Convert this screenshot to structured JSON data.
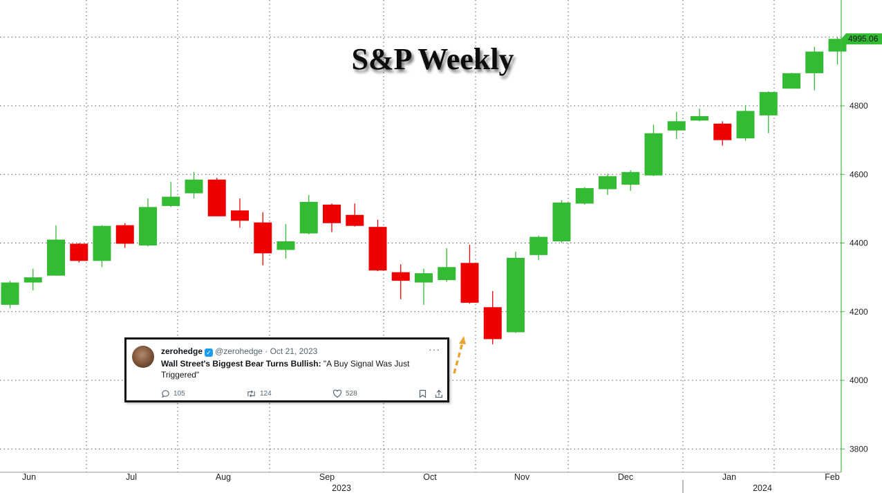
{
  "chart_data": {
    "type": "candlestick",
    "title": "S&P Weekly",
    "y_ticks": [
      3800,
      4000,
      4200,
      4400,
      4600,
      4800
    ],
    "ylim": [
      3740,
      5060
    ],
    "last_value": "4995.06",
    "grid": true,
    "y_axis_position": "right",
    "colors": {
      "up": "#33bb33",
      "down": "#ee0000",
      "axis": "#44bb44"
    },
    "month_labels": [
      "Jun",
      "Jul",
      "Aug",
      "Sep",
      "Oct",
      "Nov",
      "Dec",
      "Jan",
      "Feb"
    ],
    "year_labels": [
      "2023",
      "2024"
    ],
    "candles": [
      {
        "o": 4220,
        "h": 4290,
        "l": 4210,
        "c": 4285
      },
      {
        "o": 4285,
        "h": 4325,
        "l": 4262,
        "c": 4300
      },
      {
        "o": 4305,
        "h": 4452,
        "l": 4305,
        "c": 4410
      },
      {
        "o": 4398,
        "h": 4400,
        "l": 4343,
        "c": 4348
      },
      {
        "o": 4348,
        "h": 4452,
        "l": 4330,
        "c": 4450
      },
      {
        "o": 4452,
        "h": 4458,
        "l": 4386,
        "c": 4398
      },
      {
        "o": 4393,
        "h": 4530,
        "l": 4390,
        "c": 4505
      },
      {
        "o": 4508,
        "h": 4578,
        "l": 4505,
        "c": 4535
      },
      {
        "o": 4545,
        "h": 4607,
        "l": 4530,
        "c": 4585
      },
      {
        "o": 4585,
        "h": 4590,
        "l": 4478,
        "c": 4478
      },
      {
        "o": 4495,
        "h": 4530,
        "l": 4445,
        "c": 4465
      },
      {
        "o": 4460,
        "h": 4490,
        "l": 4335,
        "c": 4370
      },
      {
        "o": 4380,
        "h": 4455,
        "l": 4355,
        "c": 4405
      },
      {
        "o": 4428,
        "h": 4540,
        "l": 4425,
        "c": 4520
      },
      {
        "o": 4512,
        "h": 4515,
        "l": 4432,
        "c": 4458
      },
      {
        "o": 4482,
        "h": 4515,
        "l": 4448,
        "c": 4450
      },
      {
        "o": 4447,
        "h": 4468,
        "l": 4318,
        "c": 4320
      },
      {
        "o": 4315,
        "h": 4338,
        "l": 4236,
        "c": 4290
      },
      {
        "o": 4285,
        "h": 4325,
        "l": 4220,
        "c": 4312
      },
      {
        "o": 4292,
        "h": 4385,
        "l": 4287,
        "c": 4330
      },
      {
        "o": 4342,
        "h": 4395,
        "l": 4223,
        "c": 4226
      },
      {
        "o": 4213,
        "h": 4260,
        "l": 4105,
        "c": 4120
      },
      {
        "o": 4140,
        "h": 4375,
        "l": 4138,
        "c": 4357
      },
      {
        "o": 4365,
        "h": 4422,
        "l": 4350,
        "c": 4418
      },
      {
        "o": 4405,
        "h": 4525,
        "l": 4400,
        "c": 4518
      },
      {
        "o": 4515,
        "h": 4563,
        "l": 4512,
        "c": 4560
      },
      {
        "o": 4557,
        "h": 4602,
        "l": 4540,
        "c": 4595
      },
      {
        "o": 4570,
        "h": 4612,
        "l": 4552,
        "c": 4607
      },
      {
        "o": 4597,
        "h": 4745,
        "l": 4595,
        "c": 4720
      },
      {
        "o": 4728,
        "h": 4782,
        "l": 4703,
        "c": 4755
      },
      {
        "o": 4757,
        "h": 4792,
        "l": 4755,
        "c": 4770
      },
      {
        "o": 4748,
        "h": 4755,
        "l": 4684,
        "c": 4700
      },
      {
        "o": 4705,
        "h": 4802,
        "l": 4698,
        "c": 4785
      },
      {
        "o": 4772,
        "h": 4842,
        "l": 4720,
        "c": 4840
      },
      {
        "o": 4850,
        "h": 4896,
        "l": 4850,
        "c": 4895
      },
      {
        "o": 4895,
        "h": 4972,
        "l": 4845,
        "c": 4958
      },
      {
        "o": 4958,
        "h": 5000,
        "l": 4920,
        "c": 4995
      }
    ]
  },
  "tweet": {
    "name": "zerohedge",
    "handle": "@zerohedge",
    "date": "· Oct 21, 2023",
    "headline": "Wall Street's Biggest Bear Turns Bullish:",
    "quote": " \"A Buy Signal Was Just Triggered\"",
    "replies": "105",
    "retweets": "124",
    "likes": "528",
    "more_icon": "ellipsis-icon",
    "verified_icon": "verified-check-icon",
    "reply_icon": "reply-icon",
    "retweet_icon": "retweet-icon",
    "like_icon": "heart-icon",
    "bookmark_icon": "bookmark-icon",
    "share_icon": "share-icon"
  }
}
